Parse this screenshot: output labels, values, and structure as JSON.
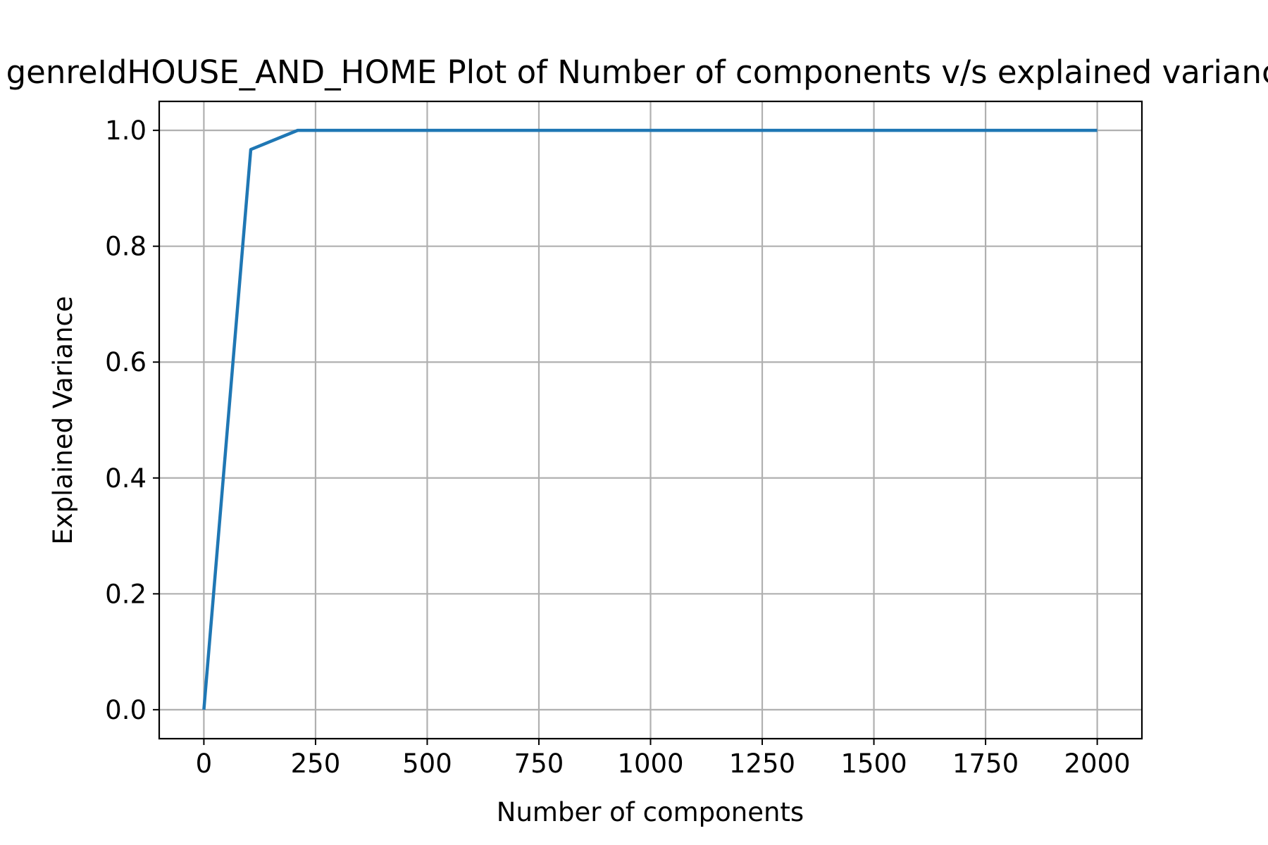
{
  "chart_data": {
    "type": "line",
    "title": "genreIdHOUSE_AND_HOME Plot of Number of components v/s explained variance",
    "xlabel": "Number of components",
    "ylabel": "Explained Variance",
    "xlim": [
      -100,
      2100
    ],
    "ylim": [
      -0.05,
      1.05
    ],
    "xticks": [
      0,
      250,
      500,
      750,
      1000,
      1250,
      1500,
      1750,
      2000
    ],
    "xtick_labels": [
      "0",
      "250",
      "500",
      "750",
      "1000",
      "1250",
      "1500",
      "1750",
      "2000"
    ],
    "yticks": [
      0.0,
      0.2,
      0.4,
      0.6,
      0.8,
      1.0
    ],
    "ytick_labels": [
      "0.0",
      "0.2",
      "0.4",
      "0.6",
      "0.8",
      "1.0"
    ],
    "grid": true,
    "line_color": "#1f77b4",
    "series": [
      {
        "x": [
          0,
          105,
          210,
          315,
          420,
          525,
          630,
          735,
          840,
          945,
          1050,
          1155,
          1260,
          1365,
          1470,
          1575,
          1680,
          1785,
          1890,
          2000
        ],
        "y": [
          0.0,
          0.967,
          1.0,
          1.0,
          1.0,
          1.0,
          1.0,
          1.0,
          1.0,
          1.0,
          1.0,
          1.0,
          1.0,
          1.0,
          1.0,
          1.0,
          1.0,
          1.0,
          1.0,
          1.0
        ]
      }
    ]
  }
}
